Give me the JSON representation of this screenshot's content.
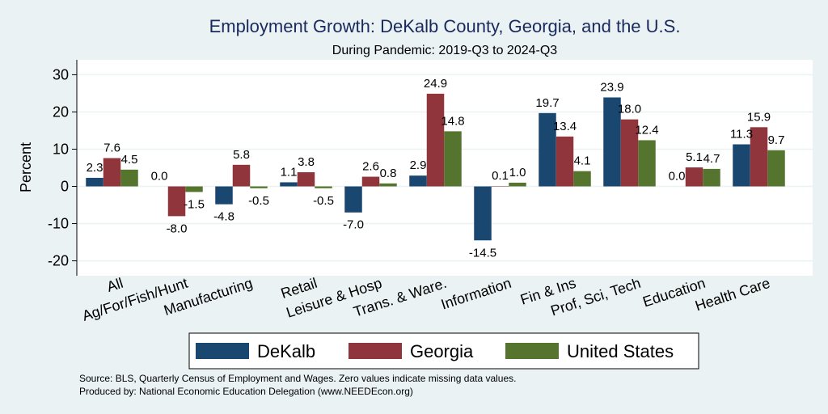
{
  "chart_data": {
    "type": "bar",
    "title": "Employment Growth: DeKalb County, Georgia, and the U.S.",
    "subtitle": "During Pandemic: 2019-Q3 to 2024-Q3",
    "ylabel": "Percent",
    "ylim": [
      -24,
      34
    ],
    "yticks": [
      30,
      20,
      10,
      0,
      -10,
      -20
    ],
    "categories": [
      "All",
      "Ag/For/Fish/Hunt",
      "Manufacturing",
      "Retail",
      "Leisure & Hosp",
      "Trans. & Ware.",
      "Information",
      "Fin & Ins",
      "Prof, Sci, Tech",
      "Education",
      "Health Care"
    ],
    "series": [
      {
        "name": "DeKalb",
        "color": "#1a476f",
        "values": [
          2.3,
          0.0,
          -4.8,
          1.1,
          -7.0,
          2.9,
          -14.5,
          19.7,
          23.9,
          0.0,
          11.3
        ],
        "labels": [
          "2.3",
          "0.0",
          "-4.8",
          "1.1",
          "-7.0",
          "2.9",
          "-14.5",
          "19.7",
          "23.9",
          "0.0",
          "11.3"
        ]
      },
      {
        "name": "Georgia",
        "color": "#90353b",
        "values": [
          7.6,
          -8.0,
          5.8,
          3.8,
          2.6,
          24.9,
          0.1,
          13.4,
          18.0,
          5.1,
          15.9
        ],
        "labels": [
          "7.6",
          "-8.0",
          "5.8",
          "3.8",
          "2.6",
          "24.9",
          "0.1",
          "13.4",
          "18.0",
          "5.1",
          "15.9"
        ]
      },
      {
        "name": "United States",
        "color": "#55752f",
        "values": [
          4.5,
          -1.5,
          -0.5,
          -0.5,
          0.8,
          14.8,
          1.0,
          4.1,
          12.4,
          4.7,
          9.7
        ],
        "labels": [
          "4.5",
          "-1.5",
          "-0.5",
          "-0.5",
          "0.8",
          "14.8",
          "1.0",
          "4.1",
          "12.4",
          "4.7",
          "9.7"
        ]
      }
    ],
    "legend_position": "bottom",
    "grid": true,
    "source_note": "Source: BLS, Quarterly Census of Employment and Wages. Zero values indicate missing data values.",
    "produced_by": "Produced by: National Economic Education Delegation (www.NEEDEcon.org)"
  },
  "colors": {
    "background": "#eaf2f3",
    "plot_background": "#ffffff",
    "grid": "#eaf2f3"
  }
}
